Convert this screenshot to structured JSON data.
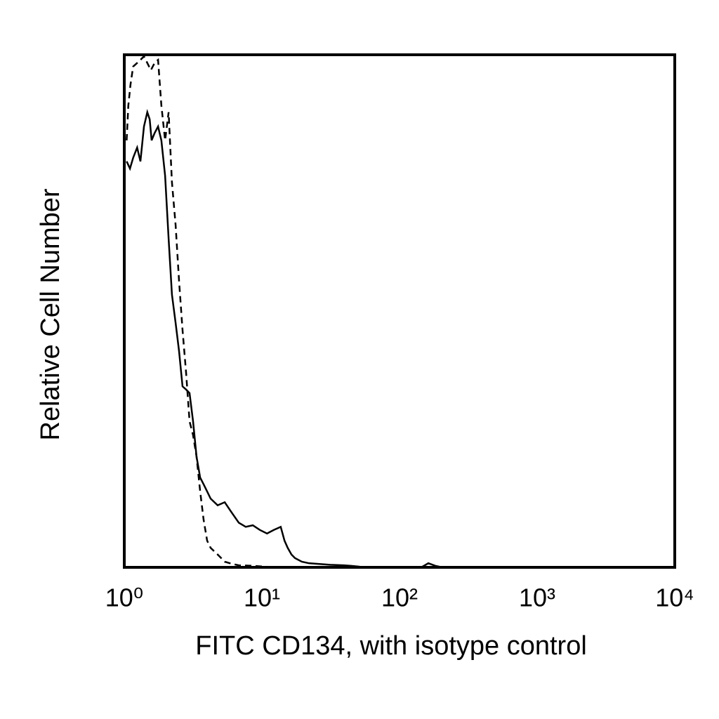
{
  "chart_data": {
    "type": "line",
    "x_label": "FITC CD134, with isotype control",
    "y_label": "Relative Cell Number",
    "xscale": "log",
    "xlim": [
      1,
      10000
    ],
    "xticks": [
      {
        "value": 1,
        "label": "10⁰"
      },
      {
        "value": 10,
        "label": "10¹"
      },
      {
        "value": 100,
        "label": "10²"
      },
      {
        "value": 1000,
        "label": "10³"
      },
      {
        "value": 10000,
        "label": "10⁴"
      }
    ],
    "ylim": [
      0,
      100
    ],
    "grid": false,
    "series": [
      {
        "color": "#000000",
        "dash": false,
        "x": [
          1.04,
          1.1,
          1.16,
          1.24,
          1.31,
          1.39,
          1.47,
          1.53,
          1.58,
          1.66,
          1.76,
          1.86,
          1.98,
          2.1,
          2.22,
          2.36,
          2.5,
          2.65,
          2.81,
          2.98,
          3.16,
          3.35,
          3.56,
          3.77,
          4.0,
          4.24,
          4.77,
          5.37,
          6.03,
          6.79,
          7.63,
          8.59,
          9.65,
          10.9,
          12.2,
          13.7,
          14.6,
          15.4,
          16.4,
          17.4,
          19.5,
          22.0,
          24.7,
          31.3,
          39.5,
          44.5,
          56.2,
          144,
          162,
          182,
          205,
          10000
        ],
        "values": [
          79.2,
          77.8,
          79.9,
          81.9,
          79.2,
          86.0,
          88.8,
          87.4,
          83.3,
          84.7,
          86.0,
          83.3,
          76.4,
          64.1,
          53.2,
          47.7,
          42.2,
          35.3,
          34.7,
          34.0,
          28.5,
          21.6,
          17.5,
          16.2,
          14.8,
          13.4,
          12.1,
          12.7,
          10.7,
          8.7,
          7.9,
          8.2,
          7.3,
          6.6,
          7.3,
          7.9,
          5.2,
          3.8,
          2.5,
          1.8,
          1.1,
          0.8,
          0.7,
          0.5,
          0.4,
          0.3,
          0,
          0,
          0.8,
          0.3,
          0,
          0
        ]
      },
      {
        "color": "#000000",
        "dash": true,
        "x": [
          1.04,
          1.07,
          1.11,
          1.16,
          1.24,
          1.31,
          1.39,
          1.47,
          1.56,
          1.66,
          1.76,
          1.86,
          1.98,
          2.1,
          2.22,
          2.36,
          2.5,
          2.65,
          2.81,
          2.98,
          3.16,
          3.35,
          3.56,
          3.77,
          4.0,
          4.24,
          4.77,
          5.37,
          6.03,
          6.79,
          8.59,
          10.9,
          13.7,
          10000
        ],
        "values": [
          83.3,
          90.1,
          94.2,
          97.7,
          98.4,
          99.0,
          99.7,
          98.4,
          97.0,
          98.4,
          99.0,
          90.1,
          83.3,
          88.8,
          75.1,
          66.8,
          55.9,
          46.3,
          38.1,
          28.5,
          25.8,
          21.6,
          14.8,
          9.3,
          5.2,
          3.8,
          2.5,
          1.1,
          0.7,
          0.4,
          0.3,
          0.1,
          0,
          0
        ]
      }
    ]
  }
}
